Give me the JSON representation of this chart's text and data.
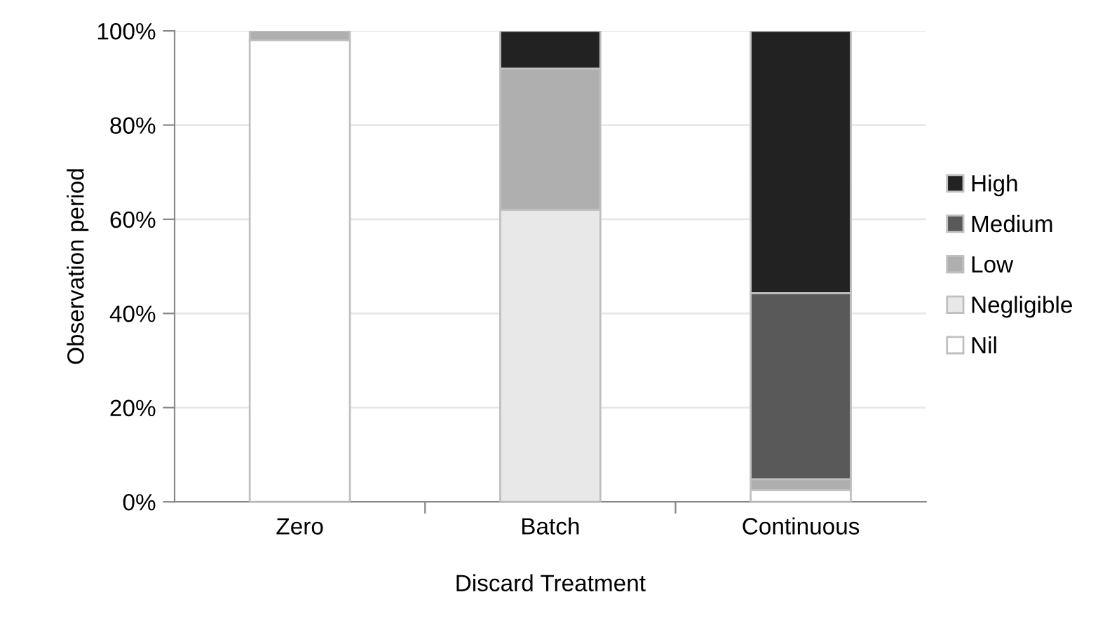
{
  "chart_data": {
    "type": "bar",
    "stacked": true,
    "xlabel": "Discard Treatment",
    "ylabel": "Observation period",
    "categories": [
      "Zero",
      "Batch",
      "Continuous"
    ],
    "series": [
      {
        "name": "Nil",
        "color": "#ffffff",
        "values": [
          98,
          0,
          2.5
        ]
      },
      {
        "name": "Negligible",
        "color": "#e8e8e8",
        "values": [
          0,
          62,
          0
        ]
      },
      {
        "name": "Low",
        "color": "#afafaf",
        "values": [
          2,
          30,
          2.3
        ]
      },
      {
        "name": "Medium",
        "color": "#595959",
        "values": [
          0,
          0,
          39.5
        ]
      },
      {
        "name": "High",
        "color": "#222222",
        "values": [
          0,
          8,
          55.7
        ]
      }
    ],
    "ylim": [
      0,
      100
    ],
    "yticks": [
      {
        "value": 0,
        "label": "0%"
      },
      {
        "value": 20,
        "label": "20%"
      },
      {
        "value": 40,
        "label": "40%"
      },
      {
        "value": 60,
        "label": "60%"
      },
      {
        "value": 80,
        "label": "80%"
      },
      {
        "value": 100,
        "label": "100%"
      }
    ],
    "grid": "y",
    "legend": "right"
  }
}
